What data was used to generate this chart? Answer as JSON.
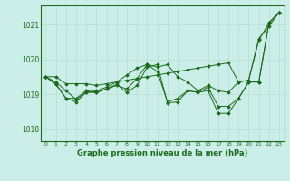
{
  "title": "Graphe pression niveau de la mer (hPa)",
  "background_color": "#cceee8",
  "grid_color": "#b8dcd6",
  "line_color": "#1a6b1a",
  "xlim": [
    -0.5,
    23.5
  ],
  "ylim": [
    1017.65,
    1021.55
  ],
  "yticks": [
    1018,
    1019,
    1020,
    1021
  ],
  "xticks": [
    0,
    1,
    2,
    3,
    4,
    5,
    6,
    7,
    8,
    9,
    10,
    11,
    12,
    13,
    14,
    15,
    16,
    17,
    18,
    19,
    20,
    21,
    22,
    23
  ],
  "series": [
    [
      1019.5,
      1019.5,
      1019.3,
      1019.3,
      1019.3,
      1019.25,
      1019.3,
      1019.35,
      1019.4,
      1019.45,
      1019.5,
      1019.55,
      1019.6,
      1019.65,
      1019.7,
      1019.75,
      1019.8,
      1019.85,
      1019.9,
      1019.35,
      1019.4,
      1020.6,
      1020.95,
      1021.35
    ],
    [
      1019.5,
      1019.35,
      1019.1,
      1018.85,
      1019.05,
      1019.1,
      1019.2,
      1019.35,
      1019.55,
      1019.75,
      1019.85,
      1019.78,
      1019.85,
      1019.5,
      1019.35,
      1019.1,
      1019.25,
      1019.1,
      1019.05,
      1019.35,
      1019.4,
      1020.55,
      1021.05,
      1021.35
    ],
    [
      1019.5,
      1019.3,
      1018.88,
      1018.88,
      1019.1,
      1019.05,
      1019.15,
      1019.25,
      1019.15,
      1019.45,
      1019.85,
      1019.65,
      1018.78,
      1018.88,
      1019.1,
      1019.05,
      1019.2,
      1018.65,
      1018.65,
      1018.88,
      1019.35,
      1019.35,
      1021.05,
      1021.35
    ],
    [
      1019.5,
      1019.28,
      1018.88,
      1018.78,
      1019.05,
      1019.05,
      1019.15,
      1019.28,
      1019.05,
      1019.25,
      1019.78,
      1019.85,
      1018.75,
      1018.78,
      1019.1,
      1019.05,
      1019.1,
      1018.45,
      1018.45,
      1018.88,
      1019.35,
      1019.35,
      1021.05,
      1021.35
    ]
  ]
}
